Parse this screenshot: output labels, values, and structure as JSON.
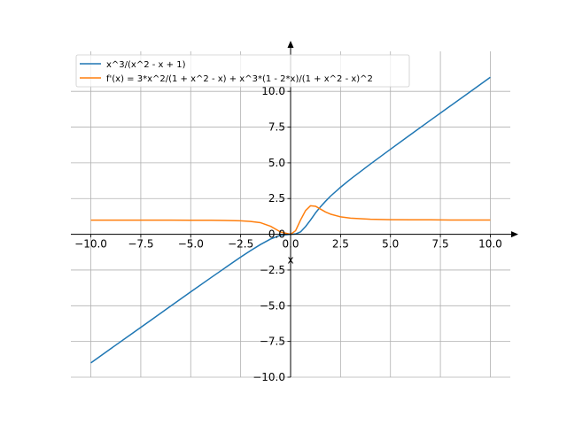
{
  "chart_data": {
    "type": "line",
    "title": "",
    "xlabel": "x",
    "ylabel": "",
    "xlim": [
      -11,
      11
    ],
    "ylim": [
      -10,
      12.8
    ],
    "grid": true,
    "legend_position": "top-left",
    "x_ticks": [
      -10.0,
      -7.5,
      -5.0,
      -2.5,
      0.0,
      2.5,
      5.0,
      7.5,
      10.0
    ],
    "y_ticks": [
      -10.0,
      -7.5,
      -5.0,
      -2.5,
      0.0,
      2.5,
      5.0,
      7.5,
      10.0
    ],
    "x_tick_labels": [
      "−10.0",
      "−7.5",
      "−5.0",
      "−2.5",
      "0.0",
      "2.5",
      "5.0",
      "7.5",
      "10.0"
    ],
    "y_tick_labels": [
      "−10.0",
      "−7.5",
      "−5.0",
      "−2.5",
      "0.0",
      "2.5",
      "5.0",
      "7.5",
      "10.0"
    ],
    "series": [
      {
        "name": "x^3/(x^2 - x + 1)",
        "color": "#1f77b4",
        "x": [
          -10,
          -9,
          -8,
          -7,
          -6,
          -5,
          -4,
          -3,
          -2.5,
          -2,
          -1.5,
          -1,
          -0.5,
          0,
          0.25,
          0.5,
          0.75,
          1,
          1.25,
          1.5,
          1.75,
          2,
          2.5,
          3,
          4,
          5,
          6,
          7,
          8,
          9,
          10
        ],
        "values": [
          -9.0,
          -8.0,
          -7.01,
          -6.02,
          -5.02,
          -4.03,
          -3.05,
          -2.08,
          -1.6,
          -1.14,
          -0.71,
          -0.33,
          -0.07,
          0.0,
          0.02,
          0.17,
          0.54,
          1.0,
          1.5,
          1.93,
          2.31,
          2.67,
          3.29,
          3.86,
          4.92,
          5.95,
          6.97,
          7.98,
          8.98,
          9.98,
          10.99
        ]
      },
      {
        "name": "f'(x) = 3*x^2/(1 + x^2 - x) + x^3*(1 - 2*x)/(1 + x^2 - x)^2",
        "color": "#ff7f0e",
        "x": [
          -10,
          -9,
          -8,
          -7,
          -6,
          -5,
          -4,
          -3,
          -2.5,
          -2,
          -1.5,
          -1,
          -0.5,
          0,
          0.25,
          0.5,
          0.75,
          1,
          1.25,
          1.5,
          1.75,
          2,
          2.5,
          3,
          4,
          5,
          6,
          7,
          8,
          9,
          10
        ],
        "values": [
          0.99,
          0.99,
          0.99,
          0.99,
          0.99,
          0.98,
          0.98,
          0.96,
          0.94,
          0.9,
          0.81,
          0.56,
          0.16,
          0.0,
          0.25,
          1.0,
          1.66,
          2.0,
          1.96,
          1.76,
          1.56,
          1.41,
          1.22,
          1.13,
          1.05,
          1.02,
          1.01,
          1.01,
          1.0,
          1.0,
          1.0
        ]
      }
    ]
  }
}
